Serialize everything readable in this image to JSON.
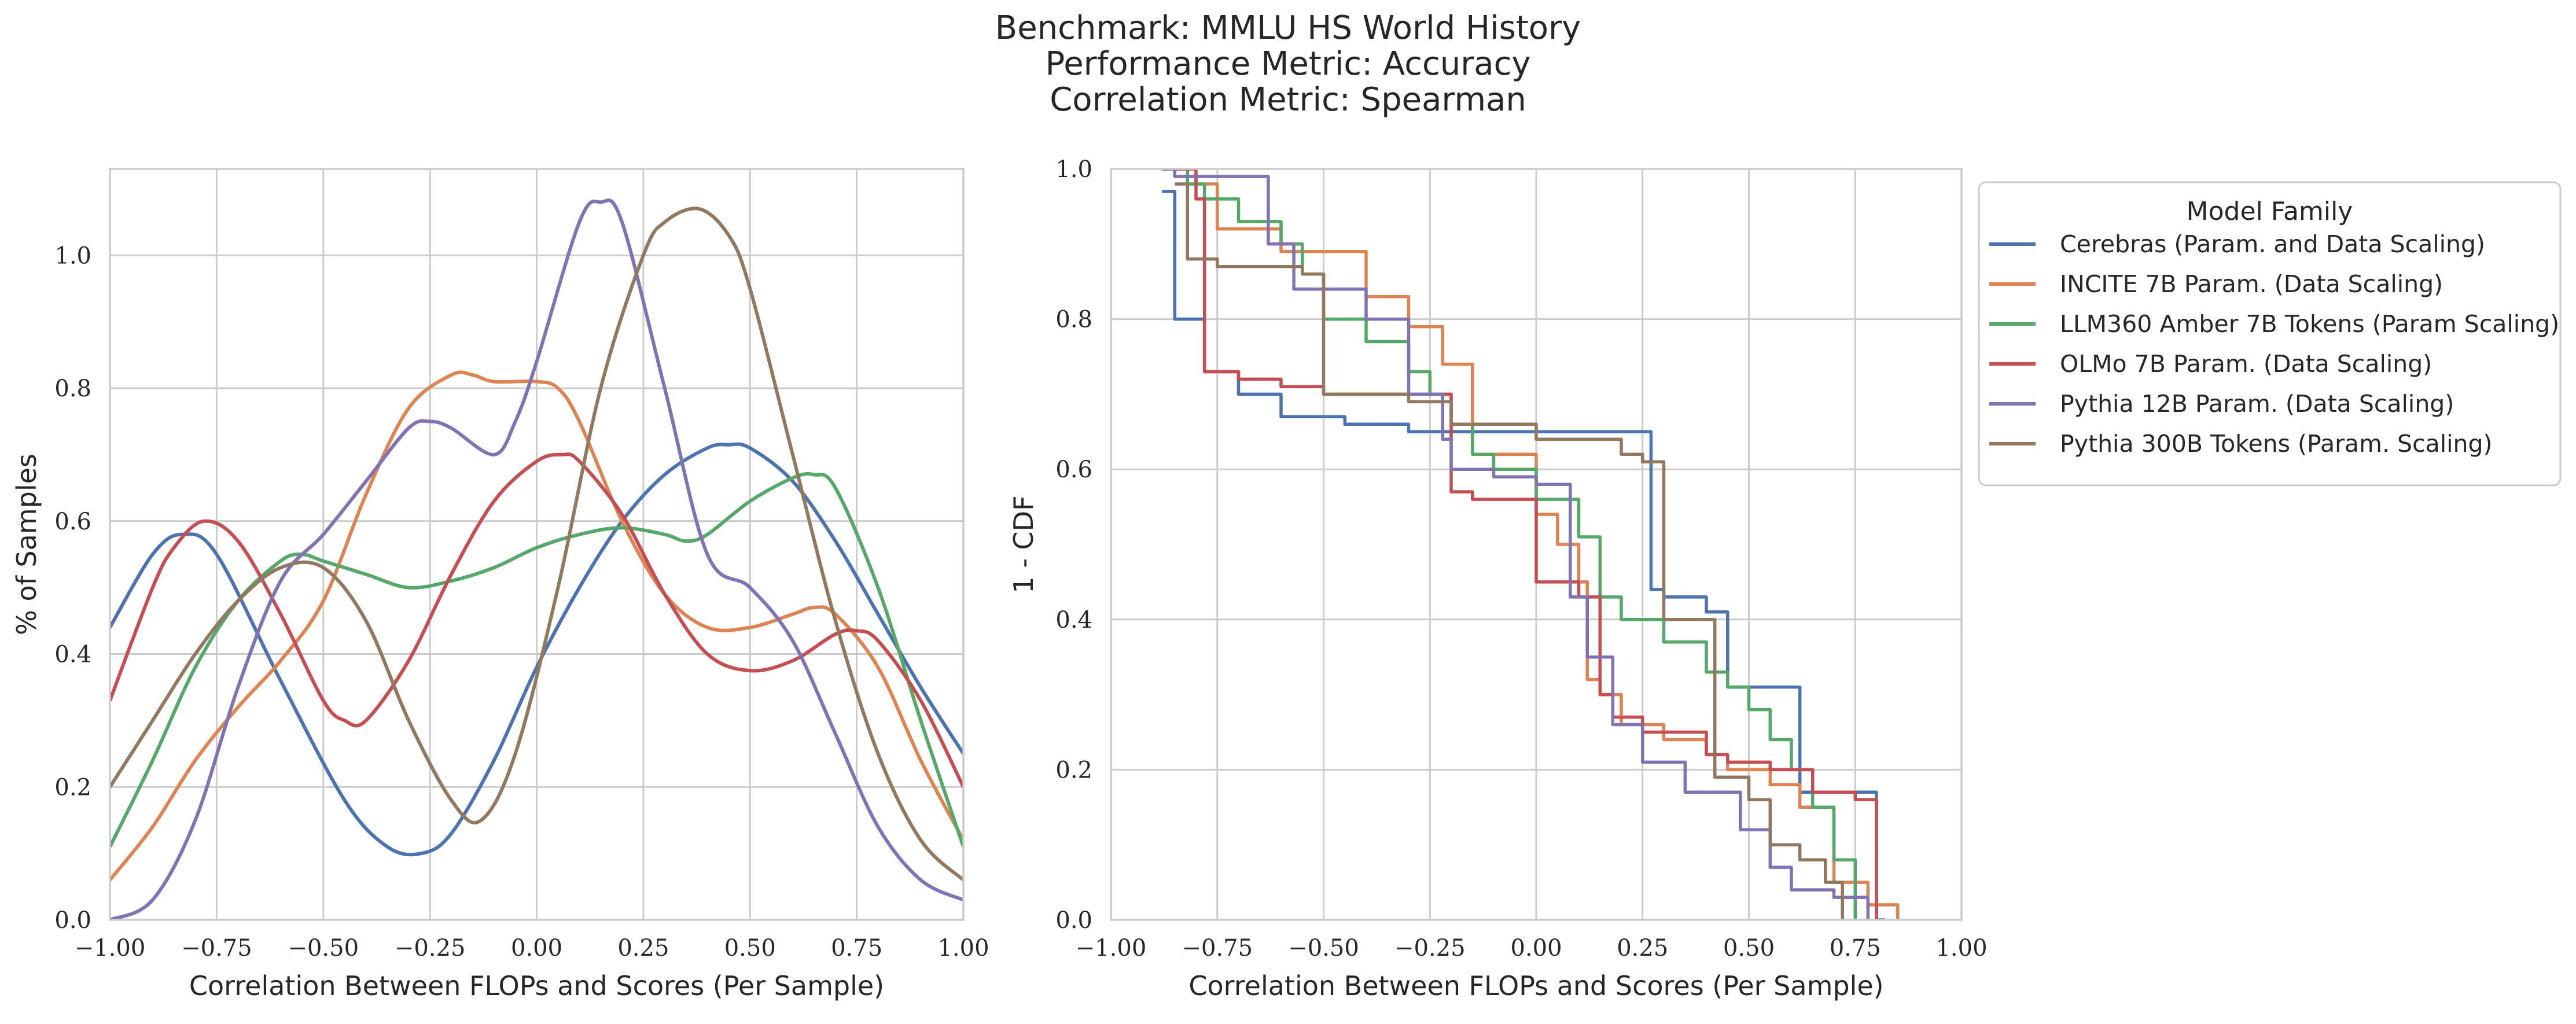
{
  "suptitle": [
    "Benchmark: MMLU HS World History",
    "Performance Metric: Accuracy",
    "Correlation Metric: Spearman"
  ],
  "legend": {
    "title": "Model Family"
  },
  "colors": {
    "Cerebras": "#4c72b0",
    "INCITE": "#dd8452",
    "LLM360": "#55a868",
    "OLMo": "#c44e52",
    "Pythia12B": "#8172b3",
    "Pythia300B": "#937860"
  },
  "chart_data": [
    {
      "type": "line",
      "xlabel": "Correlation Between FLOPs and Scores (Per Sample)",
      "ylabel": "% of Samples",
      "xlim": [
        -1.0,
        1.0
      ],
      "ylim": [
        0.0,
        1.13
      ],
      "xticks": [
        "−1.00",
        "−0.75",
        "−0.50",
        "−0.25",
        "0.00",
        "0.25",
        "0.50",
        "0.75",
        "1.00"
      ],
      "xtick_values": [
        -1.0,
        -0.75,
        -0.5,
        -0.25,
        0.0,
        0.25,
        0.5,
        0.75,
        1.0
      ],
      "yticks": [
        "0.0",
        "0.2",
        "0.4",
        "0.6",
        "0.8",
        "1.0"
      ],
      "ytick_values": [
        0.0,
        0.2,
        0.4,
        0.6,
        0.8,
        1.0
      ],
      "grid": true,
      "series": [
        {
          "name": "Cerebras (Param. and Data Scaling)",
          "color": "#4c72b0",
          "x": [
            -1.0,
            -0.9,
            -0.83,
            -0.75,
            -0.6,
            -0.45,
            -0.35,
            -0.27,
            -0.2,
            -0.1,
            0.0,
            0.1,
            0.2,
            0.3,
            0.4,
            0.45,
            0.5,
            0.6,
            0.7,
            0.8,
            0.9,
            1.0
          ],
          "y": [
            0.44,
            0.55,
            0.58,
            0.55,
            0.36,
            0.18,
            0.11,
            0.1,
            0.13,
            0.24,
            0.38,
            0.5,
            0.6,
            0.67,
            0.71,
            0.715,
            0.71,
            0.66,
            0.57,
            0.46,
            0.35,
            0.25
          ]
        },
        {
          "name": "INCITE 7B Param. (Data Scaling)",
          "color": "#dd8452",
          "x": [
            -1.0,
            -0.9,
            -0.8,
            -0.7,
            -0.6,
            -0.5,
            -0.4,
            -0.3,
            -0.2,
            -0.15,
            -0.1,
            0.0,
            0.05,
            0.1,
            0.2,
            0.3,
            0.4,
            0.5,
            0.6,
            0.65,
            0.7,
            0.8,
            0.9,
            1.0
          ],
          "y": [
            0.06,
            0.14,
            0.24,
            0.32,
            0.39,
            0.48,
            0.64,
            0.77,
            0.82,
            0.82,
            0.81,
            0.81,
            0.8,
            0.75,
            0.6,
            0.49,
            0.44,
            0.44,
            0.46,
            0.47,
            0.46,
            0.38,
            0.24,
            0.12
          ]
        },
        {
          "name": "LLM360 Amber 7B Tokens (Param Scaling)",
          "color": "#55a868",
          "x": [
            -1.0,
            -0.9,
            -0.8,
            -0.7,
            -0.6,
            -0.55,
            -0.5,
            -0.4,
            -0.3,
            -0.2,
            -0.1,
            0.0,
            0.1,
            0.2,
            0.3,
            0.35,
            0.4,
            0.5,
            0.6,
            0.65,
            0.7,
            0.8,
            0.9,
            1.0
          ],
          "y": [
            0.11,
            0.24,
            0.38,
            0.48,
            0.54,
            0.55,
            0.54,
            0.52,
            0.5,
            0.51,
            0.53,
            0.56,
            0.58,
            0.59,
            0.58,
            0.57,
            0.58,
            0.63,
            0.665,
            0.67,
            0.65,
            0.5,
            0.3,
            0.11
          ]
        },
        {
          "name": "OLMo 7B Param. (Data Scaling)",
          "color": "#c44e52",
          "x": [
            -1.0,
            -0.9,
            -0.85,
            -0.78,
            -0.7,
            -0.6,
            -0.5,
            -0.45,
            -0.4,
            -0.3,
            -0.2,
            -0.1,
            0.0,
            0.06,
            0.1,
            0.2,
            0.3,
            0.4,
            0.5,
            0.6,
            0.7,
            0.75,
            0.8,
            0.9,
            1.0
          ],
          "y": [
            0.33,
            0.5,
            0.56,
            0.6,
            0.57,
            0.46,
            0.33,
            0.3,
            0.3,
            0.39,
            0.52,
            0.63,
            0.69,
            0.7,
            0.69,
            0.61,
            0.49,
            0.4,
            0.375,
            0.39,
            0.43,
            0.435,
            0.42,
            0.33,
            0.2
          ]
        },
        {
          "name": "Pythia 12B Param. (Data Scaling)",
          "color": "#8172b3",
          "x": [
            -1.0,
            -0.9,
            -0.8,
            -0.7,
            -0.6,
            -0.5,
            -0.4,
            -0.3,
            -0.25,
            -0.2,
            -0.1,
            -0.05,
            0.0,
            0.1,
            0.15,
            0.2,
            0.3,
            0.4,
            0.5,
            0.6,
            0.7,
            0.8,
            0.9,
            1.0
          ],
          "y": [
            0.0,
            0.03,
            0.15,
            0.35,
            0.51,
            0.58,
            0.66,
            0.74,
            0.75,
            0.74,
            0.7,
            0.75,
            0.84,
            1.05,
            1.08,
            1.05,
            0.8,
            0.55,
            0.5,
            0.42,
            0.28,
            0.14,
            0.06,
            0.03
          ]
        },
        {
          "name": "Pythia 300B Tokens (Param. Scaling)",
          "color": "#937860",
          "x": [
            -1.0,
            -0.9,
            -0.8,
            -0.7,
            -0.6,
            -0.5,
            -0.4,
            -0.3,
            -0.2,
            -0.13,
            -0.05,
            0.05,
            0.15,
            0.25,
            0.3,
            0.38,
            0.45,
            0.5,
            0.6,
            0.7,
            0.8,
            0.9,
            1.0
          ],
          "y": [
            0.2,
            0.3,
            0.4,
            0.48,
            0.53,
            0.53,
            0.45,
            0.3,
            0.18,
            0.15,
            0.25,
            0.5,
            0.8,
            1.0,
            1.05,
            1.07,
            1.03,
            0.95,
            0.7,
            0.45,
            0.25,
            0.12,
            0.06
          ]
        }
      ]
    },
    {
      "type": "line",
      "xlabel": "Correlation Between FLOPs and Scores (Per Sample)",
      "ylabel": "1 - CDF",
      "xlim": [
        -1.0,
        1.0
      ],
      "ylim": [
        0.0,
        1.0
      ],
      "xticks": [
        "−1.00",
        "−0.75",
        "−0.50",
        "−0.25",
        "0.00",
        "0.25",
        "0.50",
        "0.75",
        "1.00"
      ],
      "xtick_values": [
        -1.0,
        -0.75,
        -0.5,
        -0.25,
        0.0,
        0.25,
        0.5,
        0.75,
        1.0
      ],
      "yticks": [
        "0.0",
        "0.2",
        "0.4",
        "0.6",
        "0.8",
        "1.0"
      ],
      "ytick_values": [
        0.0,
        0.2,
        0.4,
        0.6,
        0.8,
        1.0
      ],
      "grid": true,
      "legend_position": "outside-right",
      "series": [
        {
          "name": "Cerebras (Param. and Data Scaling)",
          "color": "#4c72b0",
          "x": [
            -0.88,
            -0.85,
            -0.8,
            -0.78,
            -0.7,
            -0.6,
            -0.45,
            -0.3,
            0.2,
            0.27,
            0.3,
            0.4,
            0.45,
            0.6,
            0.62,
            0.75,
            0.8,
            0.82
          ],
          "y": [
            0.97,
            0.8,
            0.8,
            0.73,
            0.7,
            0.67,
            0.66,
            0.65,
            0.65,
            0.44,
            0.43,
            0.41,
            0.31,
            0.31,
            0.17,
            0.17,
            0.0,
            0.0
          ]
        },
        {
          "name": "INCITE 7B Param. (Data Scaling)",
          "color": "#dd8452",
          "x": [
            -0.88,
            -0.8,
            -0.75,
            -0.6,
            -0.5,
            -0.4,
            -0.3,
            -0.22,
            -0.15,
            0.0,
            0.05,
            0.1,
            0.12,
            0.15,
            0.2,
            0.3,
            0.4,
            0.45,
            0.55,
            0.62,
            0.7,
            0.78,
            0.85
          ],
          "y": [
            1.0,
            0.98,
            0.92,
            0.89,
            0.89,
            0.83,
            0.79,
            0.74,
            0.62,
            0.54,
            0.5,
            0.45,
            0.32,
            0.3,
            0.26,
            0.24,
            0.22,
            0.2,
            0.18,
            0.15,
            0.05,
            0.02,
            0.0
          ]
        },
        {
          "name": "LLM360 Amber 7B Tokens (Param Scaling)",
          "color": "#55a868",
          "x": [
            -0.88,
            -0.82,
            -0.78,
            -0.7,
            -0.6,
            -0.55,
            -0.5,
            -0.4,
            -0.3,
            -0.25,
            -0.2,
            -0.15,
            -0.1,
            0.0,
            0.1,
            0.15,
            0.2,
            0.3,
            0.4,
            0.45,
            0.5,
            0.55,
            0.6,
            0.65,
            0.7,
            0.75
          ],
          "y": [
            1.0,
            0.98,
            0.96,
            0.93,
            0.9,
            0.86,
            0.8,
            0.77,
            0.73,
            0.7,
            0.66,
            0.62,
            0.6,
            0.56,
            0.51,
            0.43,
            0.4,
            0.37,
            0.33,
            0.31,
            0.28,
            0.24,
            0.2,
            0.15,
            0.08,
            0.0
          ]
        },
        {
          "name": "OLMo 7B Param. (Data Scaling)",
          "color": "#c44e52",
          "x": [
            -0.85,
            -0.8,
            -0.78,
            -0.7,
            -0.6,
            -0.5,
            -0.4,
            -0.2,
            -0.2,
            -0.15,
            0.0,
            0.1,
            0.15,
            0.18,
            0.25,
            0.4,
            0.45,
            0.55,
            0.65,
            0.75,
            0.8
          ],
          "y": [
            1.0,
            0.96,
            0.73,
            0.72,
            0.71,
            0.7,
            0.7,
            0.7,
            0.57,
            0.56,
            0.45,
            0.43,
            0.3,
            0.27,
            0.25,
            0.22,
            0.21,
            0.2,
            0.17,
            0.16,
            0.0
          ]
        },
        {
          "name": "Pythia 12B Param. (Data Scaling)",
          "color": "#8172b3",
          "x": [
            -0.88,
            -0.85,
            -0.65,
            -0.63,
            -0.57,
            -0.4,
            -0.3,
            -0.22,
            -0.2,
            -0.1,
            0.0,
            0.08,
            0.12,
            0.18,
            0.25,
            0.35,
            0.48,
            0.55,
            0.6,
            0.7,
            0.78
          ],
          "y": [
            1.0,
            0.99,
            0.99,
            0.9,
            0.84,
            0.8,
            0.7,
            0.64,
            0.6,
            0.59,
            0.58,
            0.43,
            0.35,
            0.26,
            0.21,
            0.17,
            0.12,
            0.07,
            0.04,
            0.03,
            0.0
          ]
        },
        {
          "name": "Pythia 300B Tokens (Param. Scaling)",
          "color": "#937860",
          "x": [
            -0.85,
            -0.82,
            -0.75,
            -0.55,
            -0.5,
            -0.3,
            -0.2,
            0.0,
            0.2,
            0.25,
            0.3,
            0.42,
            0.5,
            0.55,
            0.62,
            0.68,
            0.72
          ],
          "y": [
            0.98,
            0.88,
            0.87,
            0.86,
            0.7,
            0.69,
            0.66,
            0.64,
            0.62,
            0.61,
            0.4,
            0.19,
            0.16,
            0.1,
            0.08,
            0.05,
            0.0
          ]
        }
      ]
    }
  ]
}
